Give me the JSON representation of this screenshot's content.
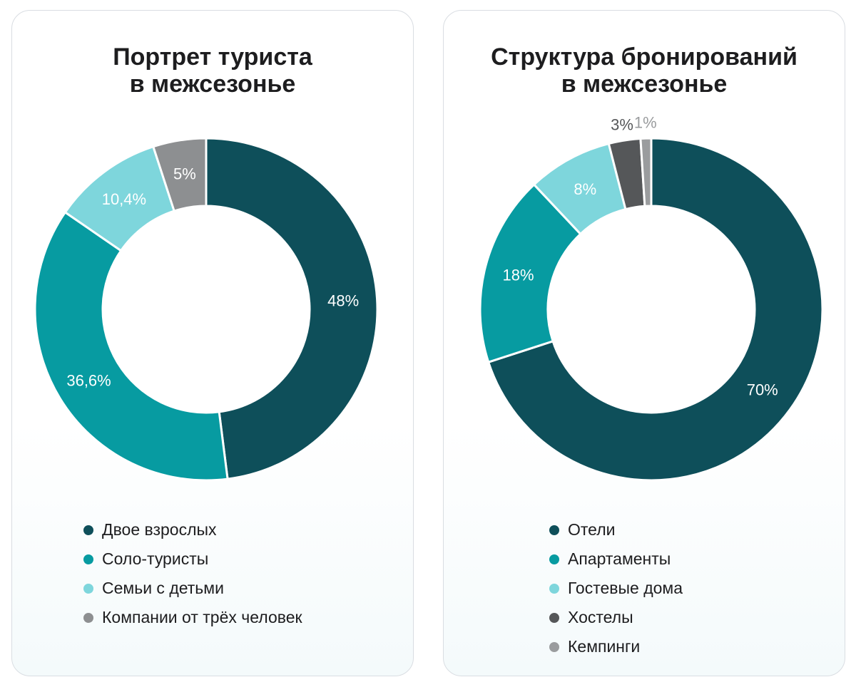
{
  "chart_data": [
    {
      "type": "pie",
      "title_lines": [
        "Портрет туриста",
        "в межсезонье"
      ],
      "categories": [
        "Двое взрослых",
        "Соло-туристы",
        "Семьи с детьми",
        "Компании от трёх человек"
      ],
      "values": [
        48,
        36.6,
        10.4,
        5
      ],
      "labels": [
        "48%",
        "36,6%",
        "10,4%",
        "5%"
      ],
      "colors": [
        "#0e4f5a",
        "#079ba1",
        "#7ed6dc",
        "#8d8f91"
      ],
      "label_colors": [
        "#ffffff",
        "#ffffff",
        "#ffffff",
        "#ffffff"
      ],
      "legend_position": "bottom"
    },
    {
      "type": "pie",
      "title_lines": [
        "Структура бронирований",
        "в межсезонье"
      ],
      "categories": [
        "Отели",
        "Апартаменты",
        "Гостевые дома",
        "Хостелы",
        "Кемпинги"
      ],
      "values": [
        70,
        18,
        8,
        3,
        1
      ],
      "labels": [
        "70%",
        "18%",
        "8%",
        "3%",
        "1%"
      ],
      "colors": [
        "#0e4f5a",
        "#079ba1",
        "#7ed6dc",
        "#555759",
        "#9a9c9e"
      ],
      "label_colors": [
        "#ffffff",
        "#ffffff",
        "#ffffff",
        "#555759",
        "#9a9c9e"
      ],
      "legend_position": "bottom"
    }
  ]
}
